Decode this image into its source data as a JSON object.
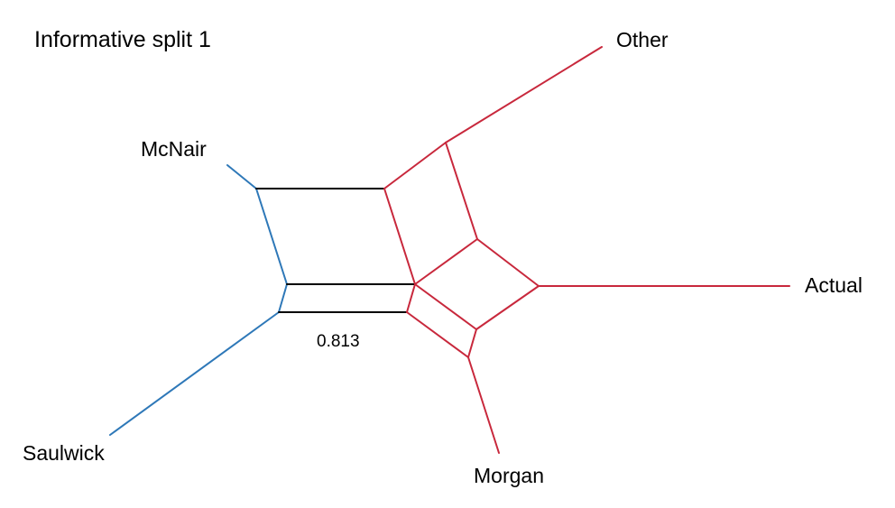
{
  "diagram": {
    "title": "Informative split 1",
    "taxa": {
      "other": "Other",
      "mcnair": "McNair",
      "actual": "Actual",
      "saulwick": "Saulwick",
      "morgan": "Morgan"
    },
    "split_weight_label": "0.813",
    "colors": {
      "group_a": "#2e78b8",
      "group_b": "#c8283c",
      "split": "#000000"
    }
  }
}
